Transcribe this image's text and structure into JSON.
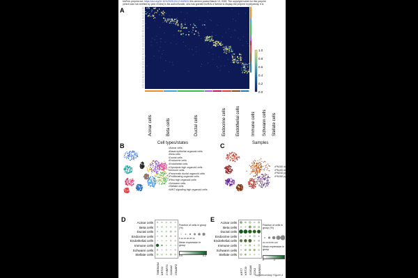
{
  "header": {
    "line1_pre": "bioRxiv preprint doi: ",
    "link": "https://doi.org/10.1101/2025.03.12.642843",
    "line1_post": "; this version posted March 13, 2025. The copyright holder for this preprint",
    "line2": "(which was not certified by peer review) is the author/funder, who has granted bioRxiv a license to display the preprint in perpetuity. It is"
  },
  "panels": {
    "a": "A",
    "b": "B",
    "c": "C",
    "d": "D",
    "e": "E"
  },
  "heatmap": {
    "colorbar_ticks": [
      "1.0",
      "0.8",
      "0.6",
      "0.4",
      "0.2",
      "0.0"
    ],
    "cell_types": [
      "Acinar cells",
      "Beta cells",
      "Ductal cells",
      "Endocrine cells",
      "Endothelial cells",
      "Immune cells",
      "Schwann cells",
      "Stellate cells"
    ],
    "group_colors": [
      "#f08a24",
      "#3aa0e8",
      "#2fbf4a",
      "#9a5ed8",
      "#c2185b",
      "#e53935",
      "#7a4b2a",
      "#1f77b4"
    ]
  },
  "umap_b": {
    "title": "Cell types/states",
    "legend": [
      "Acinar cells",
      "Basal epithelial organoid cells",
      "Beta cells",
      "Ductal cells",
      "Endocrine cells",
      "Endothelial cells",
      "Glycolysis high organoid cells",
      "Immune cells",
      "Pancreatic ductal organoid cells",
      "Proliferating organoid cells",
      "Ribo high organoid cells",
      "Schwann cells",
      "Stellate cells",
      "WNT signaling high organoid cells"
    ]
  },
  "umap_c": {
    "title": "Samples",
    "legend": [
      "PN150 ductal cells (",
      "PN150 ductal cells (",
      "PN240 pg organoid",
      "PN150 pg organoid"
    ]
  },
  "dotplot_d": {
    "rows": [
      "Acinar cells",
      "Beta cells",
      "Ductal cells",
      "Endocrine cells",
      "Endothelial cells",
      "Immune cells",
      "Schwann cells",
      "Stellate cells"
    ],
    "genes": [
      "TMEM154",
      "KRT23",
      "CYBRT1",
      "S100A2",
      "CRABP2"
    ],
    "frac_title": "Fraction of cells in group (%)",
    "frac_ticks": "5 10 15 20 25 30",
    "expr_title": "Mean expression in group",
    "expr_ticks": [
      "0.0",
      "0.2"
    ]
  },
  "dotplot_e": {
    "rows": [
      "Acinar cells",
      "Beta cells",
      "Ductal cells",
      "Endocrine cells",
      "Endothelial cells",
      "Immune cells",
      "Schwann cells",
      "Stellate cells"
    ],
    "genes": [
      "KRT7",
      "KRT19",
      "S100A6",
      "TCN1",
      "SERBS5"
    ],
    "frac_title": "Fraction of cells in group (%)",
    "frac_ticks": "20 40 60 80 100",
    "expr_title": "Mean expression in group",
    "expr_ticks": [
      "0",
      "2"
    ]
  },
  "footer": "Supplementary Figure 4"
}
